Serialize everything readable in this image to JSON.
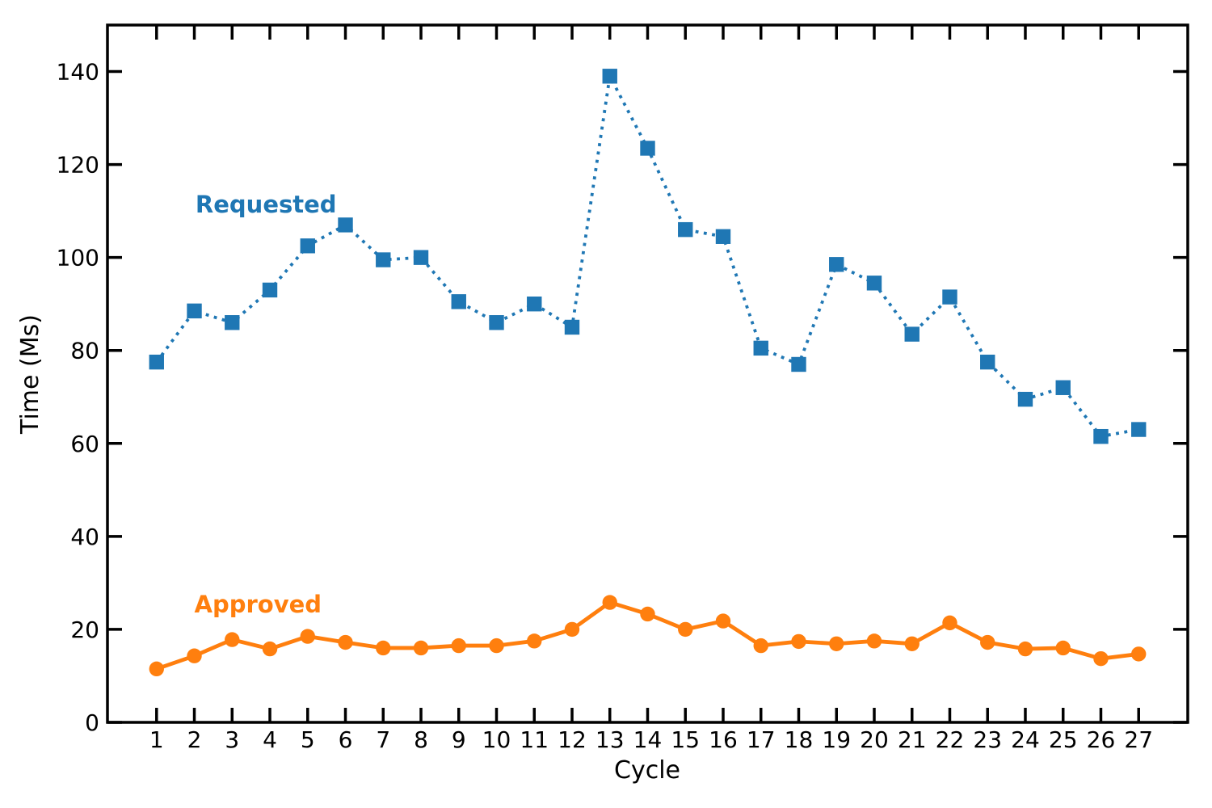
{
  "chart_data": {
    "type": "line",
    "title": "",
    "xlabel": "Cycle",
    "ylabel": "Time (Ms)",
    "x": [
      1,
      2,
      3,
      4,
      5,
      6,
      7,
      8,
      9,
      10,
      11,
      12,
      13,
      14,
      15,
      16,
      17,
      18,
      19,
      20,
      21,
      22,
      23,
      24,
      25,
      26,
      27
    ],
    "series": [
      {
        "name": "Requested",
        "values": [
          77.5,
          88.5,
          86,
          93,
          102.5,
          107,
          99.5,
          100,
          90.5,
          86,
          90,
          85,
          139,
          123.5,
          106,
          104.5,
          80.5,
          77,
          98.5,
          94.5,
          83.5,
          91.5,
          77.5,
          69.5,
          72,
          61.5,
          63
        ],
        "color": "#1f77b4",
        "marker": "square",
        "linestyle": "dotted",
        "label_pos": {
          "x": 2.03,
          "y": 109.7
        }
      },
      {
        "name": "Approved",
        "values": [
          11.5,
          14.3,
          17.8,
          15.8,
          18.5,
          17.2,
          16,
          16,
          16.5,
          16.5,
          17.5,
          20,
          25.8,
          23.3,
          20,
          21.8,
          16.5,
          17.4,
          16.9,
          17.5,
          16.9,
          21.4,
          17.2,
          15.8,
          16,
          13.7,
          14.7
        ],
        "color": "#ff7f0e",
        "marker": "circle",
        "linestyle": "solid",
        "label_pos": {
          "x": 2.0,
          "y": 23.6
        }
      }
    ],
    "xlim": [
      -0.3,
      28.3
    ],
    "ylim": [
      0,
      150
    ],
    "xticks": [
      1,
      2,
      3,
      4,
      5,
      6,
      7,
      8,
      9,
      10,
      11,
      12,
      13,
      14,
      15,
      16,
      17,
      18,
      19,
      20,
      21,
      22,
      23,
      24,
      25,
      26,
      27
    ],
    "yticks": [
      0,
      20,
      40,
      60,
      80,
      100,
      120,
      140
    ],
    "grid": false,
    "legend": "inline-annotations",
    "ticks": "in-all-sides"
  }
}
